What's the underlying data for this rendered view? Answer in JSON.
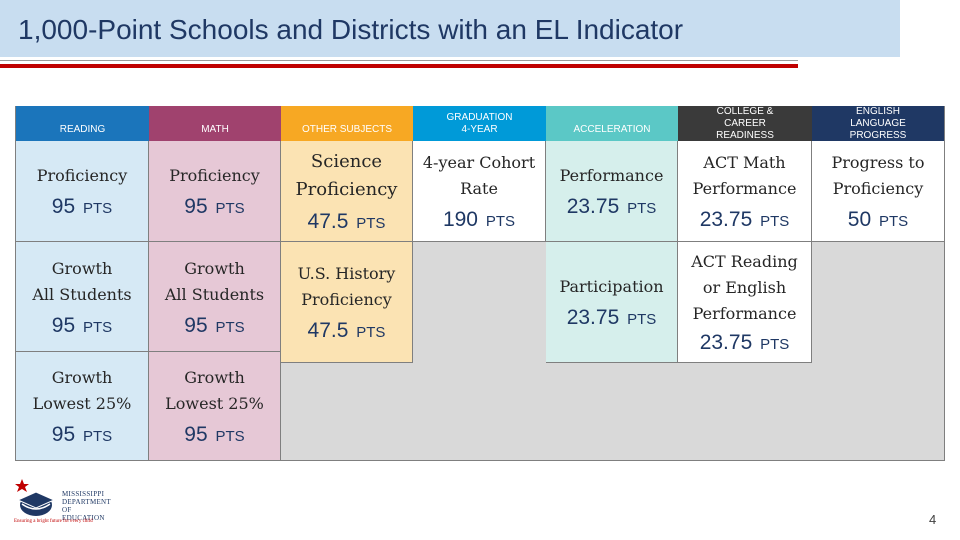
{
  "title": "1,000-Point Schools and Districts with an EL Indicator",
  "colors": {
    "title_bar": "#c8ddf0",
    "title_text": "#1f3864",
    "red_rule": "#c00000",
    "reading_header": "#1b75bb",
    "reading_cell": "#d6e9f5",
    "math_header": "#a0426e",
    "math_cell": "#e6c8d6",
    "other_header": "#f7a823",
    "other_cell": "#fbe3b3",
    "graduation_header": "#009ad8",
    "graduation_cell": "#ffffff",
    "acceleration_header": "#5bc8c6",
    "acceleration_cell": "#d6efec",
    "college_header": "#3a3a3a",
    "college_cell": "#ffffff",
    "elp_header": "#1f3864",
    "elp_cell": "#ffffff",
    "panel": "#d9d9d9"
  },
  "columns": [
    {
      "header": "READING"
    },
    {
      "header": "MATH"
    },
    {
      "header": "OTHER SUBJECTS"
    },
    {
      "header": "GRADUATION 4-YEAR"
    },
    {
      "header": "ACCELERATION"
    },
    {
      "header": "COLLEGE & CAREER READINESS"
    },
    {
      "header": "ENGLISH LANGUAGE PROGRESS"
    }
  ],
  "cells": {
    "reading_1": {
      "label": "Proficiency",
      "points": "95",
      "unit": "PTS"
    },
    "reading_2": {
      "label_1": "Growth",
      "label_2": "All Students",
      "points": "95",
      "unit": "PTS"
    },
    "reading_3": {
      "label_1": "Growth",
      "label_2": "Lowest 25%",
      "points": "95",
      "unit": "PTS"
    },
    "math_1": {
      "label": "Proficiency",
      "points": "95",
      "unit": "PTS"
    },
    "math_2": {
      "label_1": "Growth",
      "label_2": "All Students",
      "points": "95",
      "unit": "PTS"
    },
    "math_3": {
      "label_1": "Growth",
      "label_2": "Lowest 25%",
      "points": "95",
      "unit": "PTS"
    },
    "other_1": {
      "label_1": "Science",
      "label_2": "Proficiency",
      "points": "47.5",
      "unit": "PTS"
    },
    "other_2": {
      "label_1": "U.S. History",
      "label_2": "Proficiency",
      "points": "47.5",
      "unit": "PTS"
    },
    "graduation_1": {
      "label_1": "4-year Cohort",
      "label_2": "Rate",
      "points": "190",
      "unit": "PTS"
    },
    "acceleration_1": {
      "label": "Performance",
      "points": "23.75",
      "unit": "PTS"
    },
    "acceleration_2": {
      "label": "Participation",
      "points": "23.75",
      "unit": "PTS"
    },
    "college_1": {
      "label_1": "ACT Math",
      "label_2": "Performance",
      "points": "23.75",
      "unit": "PTS"
    },
    "college_2": {
      "label_1": "ACT Reading",
      "label_2": "or English",
      "label_3": "Performance",
      "points": "23.75",
      "unit": "PTS"
    },
    "elp_1": {
      "label_1": "Progress to",
      "label_2": "Proficiency",
      "points": "50",
      "unit": "PTS"
    }
  },
  "logo": {
    "line_1": "MISSISSIPPI",
    "line_2": "DEPARTMENT OF",
    "line_3": "EDUCATION",
    "tagline": "Ensuring a bright future for every child",
    "icon": "graduation-cap-star-icon"
  },
  "page_number": "4"
}
